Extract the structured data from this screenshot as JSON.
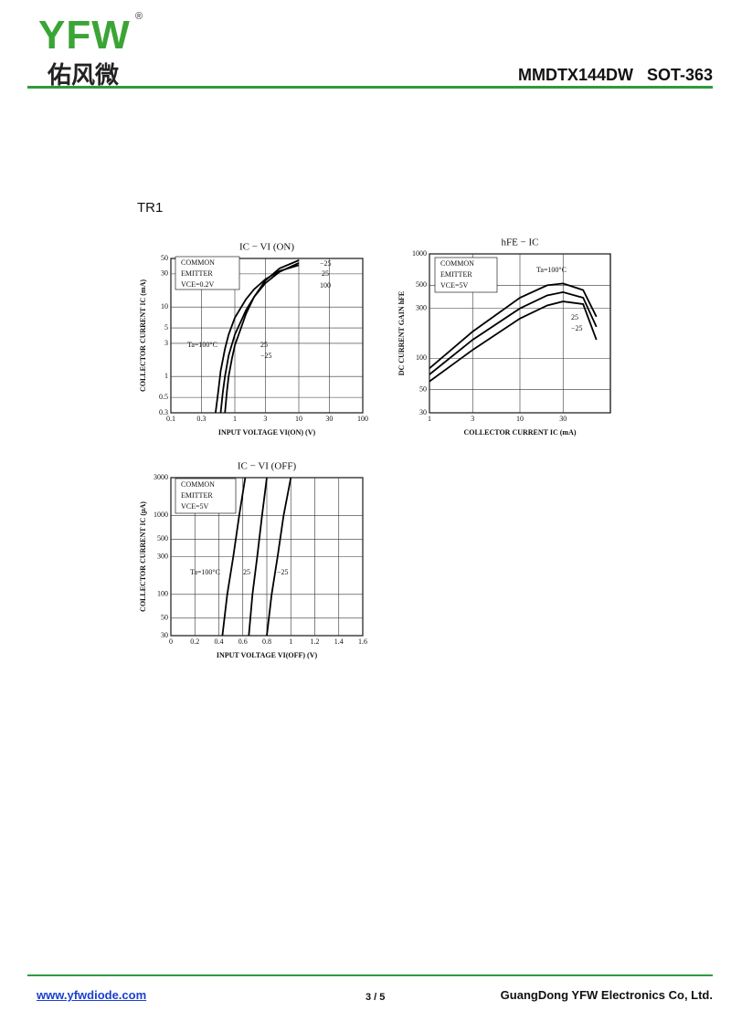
{
  "header": {
    "logo": "YFW",
    "registered": "®",
    "logo_cn": "佑风微",
    "title": "MMDTX144DW   SOT-363"
  },
  "section": "TR1",
  "chart_data": [
    {
      "type": "line",
      "title": "IC − VI (ON)",
      "x_label": "INPUT VOLTAGE  VI(ON)  (V)",
      "y_label": "COLLECTOR CURRENT  IC  (mA)",
      "x_log": true,
      "y_log": true,
      "grid": true,
      "xlim": [
        0.1,
        100
      ],
      "xticks": [
        0.1,
        0.3,
        1,
        3,
        10,
        30,
        100
      ],
      "ylim": [
        0.3,
        50
      ],
      "yticks": [
        0.3,
        0.5,
        1,
        3,
        5,
        10,
        30,
        50
      ],
      "note": [
        "COMMON",
        "EMITTER",
        "VCE=0.2V"
      ],
      "annotations": [
        "−25",
        "25",
        "100"
      ],
      "series": [
        {
          "name": "Ta=100°C",
          "color": "#000000",
          "x": [
            0.5,
            0.55,
            0.6,
            0.7,
            0.8,
            1,
            1.5,
            2,
            3,
            5,
            10
          ],
          "values": [
            0.3,
            0.6,
            1.2,
            2.5,
            4,
            7,
            13,
            18,
            25,
            33,
            40
          ]
        },
        {
          "name": "25",
          "color": "#000000",
          "x": [
            0.6,
            0.65,
            0.7,
            0.8,
            1,
            1.5,
            2,
            3,
            5,
            10
          ],
          "values": [
            0.3,
            0.6,
            1,
            2,
            4,
            9,
            14,
            22,
            32,
            43
          ]
        },
        {
          "name": "−25",
          "color": "#000000",
          "x": [
            0.7,
            0.75,
            0.8,
            0.9,
            1,
            1.5,
            2,
            3,
            5,
            10
          ],
          "values": [
            0.3,
            0.6,
            1,
            1.8,
            2.8,
            8,
            14,
            24,
            36,
            47
          ]
        }
      ]
    },
    {
      "type": "line",
      "title": "hFE − IC",
      "x_label": "COLLECTOR CURRENT  IC  (mA)",
      "y_label": "DC CURRENT GAIN  hFE",
      "x_log": true,
      "y_log": true,
      "grid": true,
      "xlim": [
        1,
        100
      ],
      "xticks": [
        1,
        3,
        10,
        30
      ],
      "ylim": [
        30,
        1000
      ],
      "yticks": [
        30,
        50,
        100,
        300,
        500,
        1000
      ],
      "note": [
        "COMMON",
        "EMITTER",
        "VCE=5V"
      ],
      "series": [
        {
          "name": "Ta=100°C",
          "color": "#000000",
          "x": [
            1,
            3,
            10,
            20,
            30,
            50,
            70
          ],
          "values": [
            80,
            180,
            380,
            500,
            520,
            450,
            250
          ]
        },
        {
          "name": "25",
          "color": "#000000",
          "x": [
            1,
            3,
            10,
            20,
            30,
            50,
            70
          ],
          "values": [
            70,
            150,
            300,
            400,
            430,
            380,
            200
          ]
        },
        {
          "name": "−25",
          "color": "#000000",
          "x": [
            1,
            3,
            10,
            20,
            30,
            50,
            70
          ],
          "values": [
            60,
            120,
            240,
            320,
            350,
            330,
            150
          ]
        }
      ]
    },
    {
      "type": "line",
      "title": "IC − VI (OFF)",
      "x_label": "INPUT VOLTAGE  VI(OFF)  (V)",
      "y_label": "COLLECTOR CURRENT  IC  (μA)",
      "x_log": false,
      "y_log": true,
      "grid": true,
      "xlim": [
        0,
        1.6
      ],
      "xticks": [
        0,
        0.2,
        0.4,
        0.6,
        0.8,
        1.0,
        1.2,
        1.4,
        1.6
      ],
      "ylim": [
        30,
        3000
      ],
      "yticks": [
        30,
        50,
        100,
        300,
        500,
        1000,
        3000
      ],
      "note": [
        "COMMON",
        "EMITTER",
        "VCE=5V"
      ],
      "series": [
        {
          "name": "Ta=100°C",
          "color": "#000000",
          "x": [
            0.43,
            0.47,
            0.52,
            0.57,
            0.62
          ],
          "values": [
            30,
            100,
            300,
            1000,
            3000
          ]
        },
        {
          "name": "25",
          "color": "#000000",
          "x": [
            0.65,
            0.68,
            0.72,
            0.76,
            0.8
          ],
          "values": [
            30,
            100,
            300,
            1000,
            3000
          ]
        },
        {
          "name": "−25",
          "color": "#000000",
          "x": [
            0.8,
            0.84,
            0.89,
            0.94,
            1.0
          ],
          "values": [
            30,
            100,
            300,
            1000,
            3000
          ]
        }
      ]
    }
  ],
  "footer": {
    "url": "www.yfwdiode.com",
    "page": "3 / 5",
    "company": "GuangDong YFW Electronics Co, Ltd."
  }
}
